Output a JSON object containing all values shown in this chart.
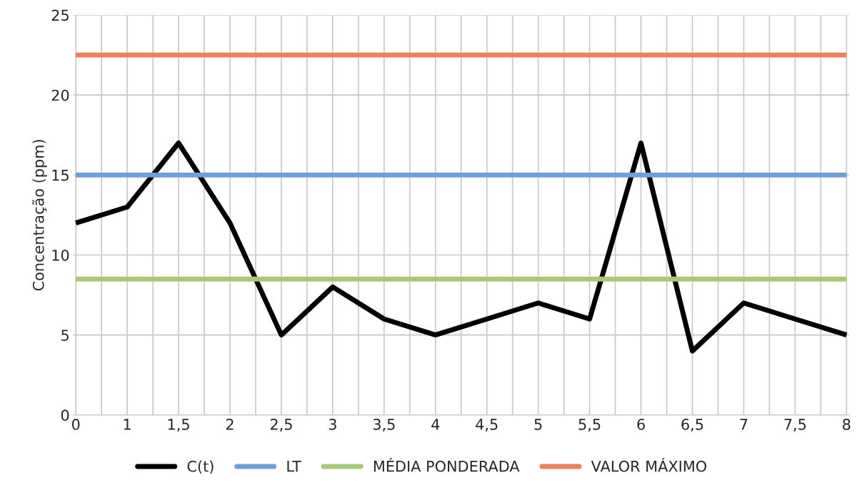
{
  "chart_data": {
    "type": "line",
    "ylabel": "Concentração (ppm)",
    "categories": [
      "0",
      "1",
      "1,5",
      "2",
      "2,5",
      "3",
      "3,5",
      "4",
      "4,5",
      "5",
      "5,5",
      "6",
      "6,5",
      "7",
      "7,5",
      "8"
    ],
    "series": [
      {
        "name": "C(t)",
        "color": "#000000",
        "values": [
          12,
          13,
          17,
          12,
          5,
          8,
          6,
          5,
          6,
          7,
          6,
          17,
          4,
          7,
          6,
          5
        ]
      },
      {
        "name": "LT",
        "color": "#6f9fd8",
        "values": [
          15,
          15,
          15,
          15,
          15,
          15,
          15,
          15,
          15,
          15,
          15,
          15,
          15,
          15,
          15,
          15
        ]
      },
      {
        "name": "MÉDIA PONDERADA",
        "color": "#a9c97a",
        "values": [
          8.5,
          8.5,
          8.5,
          8.5,
          8.5,
          8.5,
          8.5,
          8.5,
          8.5,
          8.5,
          8.5,
          8.5,
          8.5,
          8.5,
          8.5,
          8.5
        ]
      },
      {
        "name": "VALOR MÁXIMO",
        "color": "#f07f5e",
        "values": [
          22.5,
          22.5,
          22.5,
          22.5,
          22.5,
          22.5,
          22.5,
          22.5,
          22.5,
          22.5,
          22.5,
          22.5,
          22.5,
          22.5,
          22.5,
          22.5
        ]
      }
    ],
    "ylim": [
      0,
      25
    ],
    "yticks": [
      0,
      5,
      10,
      15,
      20,
      25
    ],
    "grid": true,
    "legend": "bottom",
    "marker": "none",
    "line_style": "solid"
  }
}
